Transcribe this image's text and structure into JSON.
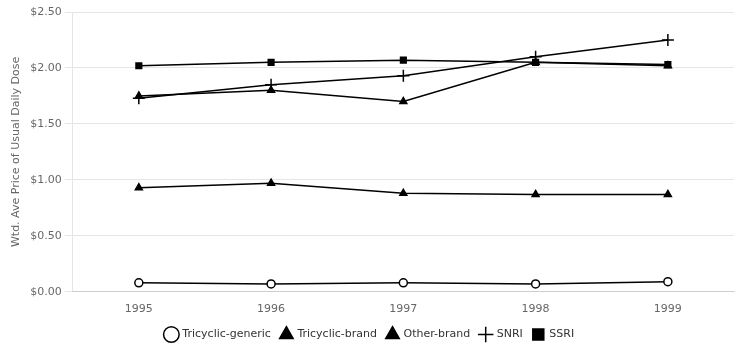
{
  "chart_data": {
    "type": "line",
    "categories": [
      "1995",
      "1996",
      "1997",
      "1998",
      "1999"
    ],
    "series": [
      {
        "name": "Tricyclic-generic",
        "color": "#000000",
        "marker": "open_circle",
        "values": [
          0.08,
          0.07,
          0.08,
          0.07,
          0.09
        ]
      },
      {
        "name": "Tricyclic-brand",
        "color": "#000000",
        "marker": "triangle",
        "values": [
          0.93,
          0.97,
          0.88,
          0.87,
          0.87
        ]
      },
      {
        "name": "Other-brand",
        "color": "#000000",
        "marker": "triangle",
        "values": [
          1.75,
          1.8,
          1.7,
          2.05,
          2.02
        ]
      },
      {
        "name": "SNRI",
        "color": "#000000",
        "marker": "plus",
        "values": [
          1.73,
          1.85,
          1.93,
          2.1,
          2.25
        ]
      },
      {
        "name": "SSRI",
        "color": "#000000",
        "marker": "square",
        "values": [
          2.02,
          2.05,
          2.07,
          2.05,
          2.03
        ]
      }
    ],
    "ylabel": "Wtd. Ave Price of Usual Daily Dose",
    "ylim": [
      0.0,
      2.5
    ],
    "yticks": [
      {
        "value": 0.0,
        "label": "$0.00"
      },
      {
        "value": 0.5,
        "label": "$0.50"
      },
      {
        "value": 1.0,
        "label": "$1.00"
      },
      {
        "value": 1.5,
        "label": "$1.50"
      },
      {
        "value": 2.0,
        "label": "$2.00"
      },
      {
        "value": 2.5,
        "label": "$2.50"
      }
    ],
    "grid": "y",
    "legend": "bottom"
  }
}
